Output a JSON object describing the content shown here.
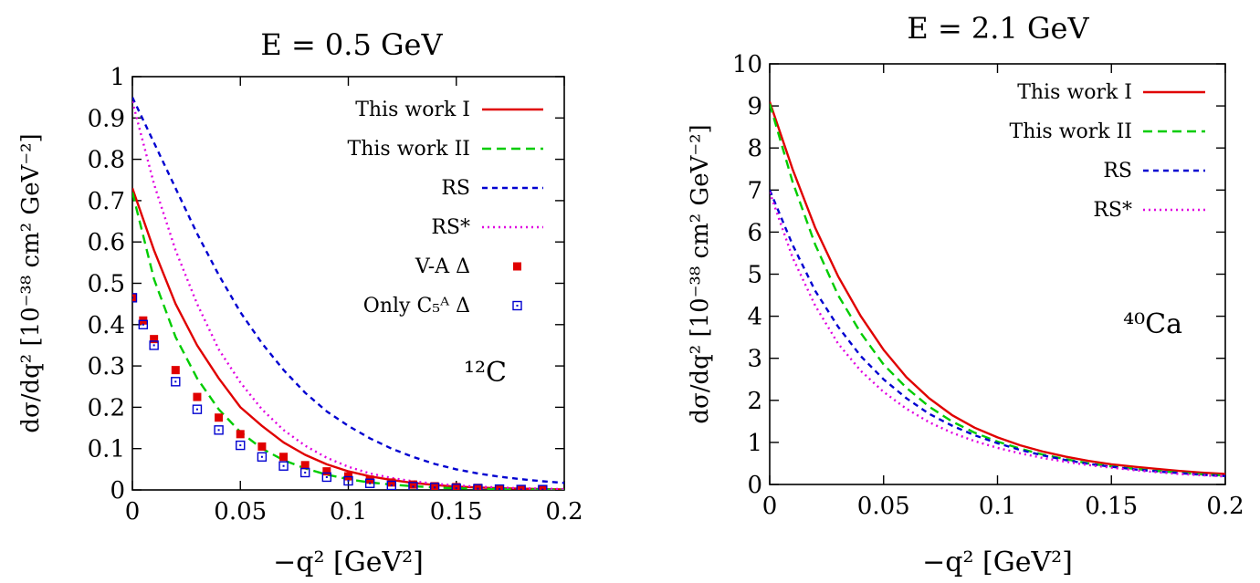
{
  "chart_data": [
    {
      "type": "line",
      "title": "E = 0.5 GeV",
      "xlabel": "−q² [GeV²]",
      "ylabel": "dσ/dq² [10⁻³⁸ cm² GeV⁻²]",
      "xlim": [
        0,
        0.2
      ],
      "ylim": [
        0,
        1
      ],
      "xticks": [
        "0",
        "0.05",
        "0.1",
        "0.15",
        "0.2"
      ],
      "yticks": [
        "0",
        "0.1",
        "0.2",
        "0.3",
        "0.4",
        "0.5",
        "0.6",
        "0.7",
        "0.8",
        "0.9",
        "1"
      ],
      "annotation": "¹²C",
      "legend_position": "top-right",
      "x": [
        0,
        0.01,
        0.02,
        0.03,
        0.04,
        0.05,
        0.06,
        0.07,
        0.08,
        0.09,
        0.1,
        0.11,
        0.12,
        0.13,
        0.14,
        0.15,
        0.16,
        0.17,
        0.18,
        0.19,
        0.2
      ],
      "series": [
        {
          "name": "This work I",
          "color": "#e00000",
          "dash": "",
          "values": [
            0.73,
            0.58,
            0.45,
            0.35,
            0.27,
            0.2,
            0.155,
            0.115,
            0.085,
            0.062,
            0.045,
            0.033,
            0.024,
            0.017,
            0.012,
            0.008,
            0.006,
            0.004,
            0.003,
            0.002,
            0.001
          ]
        },
        {
          "name": "This work II",
          "color": "#00cc00",
          "dash": "10,6",
          "values": [
            0.72,
            0.51,
            0.37,
            0.27,
            0.195,
            0.14,
            0.1,
            0.072,
            0.052,
            0.037,
            0.026,
            0.018,
            0.013,
            0.009,
            0.006,
            0.004,
            0.003,
            0.002,
            0.0015,
            0.001,
            0.0005
          ]
        },
        {
          "name": "RS",
          "color": "#0000d0",
          "dash": "6,5",
          "values": [
            0.95,
            0.84,
            0.73,
            0.62,
            0.52,
            0.43,
            0.355,
            0.29,
            0.235,
            0.19,
            0.155,
            0.125,
            0.1,
            0.08,
            0.063,
            0.05,
            0.04,
            0.032,
            0.026,
            0.021,
            0.017
          ]
        },
        {
          "name": "RS*",
          "color": "#e000e0",
          "dash": "2,4",
          "values": [
            0.94,
            0.74,
            0.58,
            0.45,
            0.34,
            0.26,
            0.195,
            0.145,
            0.107,
            0.078,
            0.056,
            0.04,
            0.029,
            0.021,
            0.015,
            0.011,
            0.008,
            0.006,
            0.004,
            0.003,
            0.002
          ]
        }
      ],
      "points": [
        {
          "name": "V-A Δ",
          "color": "#e00000",
          "marker": "filled-square",
          "x": [
            0,
            0.005,
            0.01,
            0.02,
            0.03,
            0.04,
            0.05,
            0.06,
            0.07,
            0.08,
            0.09,
            0.1,
            0.11,
            0.12,
            0.13,
            0.14,
            0.15,
            0.16,
            0.17,
            0.18,
            0.19
          ],
          "y": [
            0.465,
            0.41,
            0.365,
            0.29,
            0.225,
            0.175,
            0.135,
            0.105,
            0.08,
            0.06,
            0.045,
            0.033,
            0.025,
            0.018,
            0.013,
            0.009,
            0.007,
            0.005,
            0.003,
            0.002,
            0.001
          ]
        },
        {
          "name": "Only C₅ᴬ Δ",
          "color": "#0000d0",
          "marker": "open-square-dot",
          "x": [
            0,
            0.005,
            0.01,
            0.02,
            0.03,
            0.04,
            0.05,
            0.06,
            0.07,
            0.08,
            0.09,
            0.1,
            0.11,
            0.12,
            0.13,
            0.14,
            0.15,
            0.16,
            0.17,
            0.18,
            0.19
          ],
          "y": [
            0.465,
            0.4,
            0.35,
            0.262,
            0.195,
            0.145,
            0.108,
            0.08,
            0.058,
            0.042,
            0.031,
            0.022,
            0.016,
            0.011,
            0.008,
            0.006,
            0.004,
            0.003,
            0.002,
            0.001,
            0.0008
          ]
        }
      ]
    },
    {
      "type": "line",
      "title": "E = 2.1 GeV",
      "xlabel": "−q² [GeV²]",
      "ylabel": "dσ/dq² [10⁻³⁸ cm² GeV⁻²]",
      "xlim": [
        0,
        0.2
      ],
      "ylim": [
        0,
        10
      ],
      "xticks": [
        "0",
        "0.05",
        "0.1",
        "0.15",
        "0.2"
      ],
      "yticks": [
        "0",
        "1",
        "2",
        "3",
        "4",
        "5",
        "6",
        "7",
        "8",
        "9",
        "10"
      ],
      "annotation": "⁴⁰Ca",
      "legend_position": "top-right",
      "x": [
        0,
        0.01,
        0.02,
        0.03,
        0.04,
        0.05,
        0.06,
        0.07,
        0.08,
        0.09,
        0.1,
        0.11,
        0.12,
        0.13,
        0.14,
        0.15,
        0.16,
        0.17,
        0.18,
        0.19,
        0.2
      ],
      "series": [
        {
          "name": "This work I",
          "color": "#e00000",
          "dash": "",
          "values": [
            9.1,
            7.5,
            6.1,
            4.95,
            4.0,
            3.2,
            2.55,
            2.05,
            1.65,
            1.35,
            1.12,
            0.93,
            0.78,
            0.66,
            0.56,
            0.48,
            0.42,
            0.37,
            0.32,
            0.28,
            0.25
          ]
        },
        {
          "name": "This work II",
          "color": "#00cc00",
          "dash": "10,6",
          "values": [
            9.05,
            7.2,
            5.7,
            4.5,
            3.6,
            2.85,
            2.3,
            1.85,
            1.5,
            1.23,
            1.02,
            0.85,
            0.71,
            0.6,
            0.5,
            0.43,
            0.37,
            0.32,
            0.28,
            0.24,
            0.21
          ]
        },
        {
          "name": "RS",
          "color": "#0000d0",
          "dash": "6,5",
          "values": [
            7.0,
            5.7,
            4.6,
            3.75,
            3.05,
            2.5,
            2.05,
            1.68,
            1.4,
            1.17,
            0.98,
            0.82,
            0.69,
            0.58,
            0.49,
            0.42,
            0.36,
            0.31,
            0.27,
            0.23,
            0.2
          ]
        },
        {
          "name": "RS*",
          "color": "#e000e0",
          "dash": "2,4",
          "values": [
            6.95,
            5.4,
            4.25,
            3.35,
            2.7,
            2.2,
            1.8,
            1.48,
            1.23,
            1.03,
            0.87,
            0.74,
            0.63,
            0.54,
            0.46,
            0.4,
            0.34,
            0.29,
            0.25,
            0.22,
            0.19
          ]
        }
      ],
      "points": []
    }
  ]
}
